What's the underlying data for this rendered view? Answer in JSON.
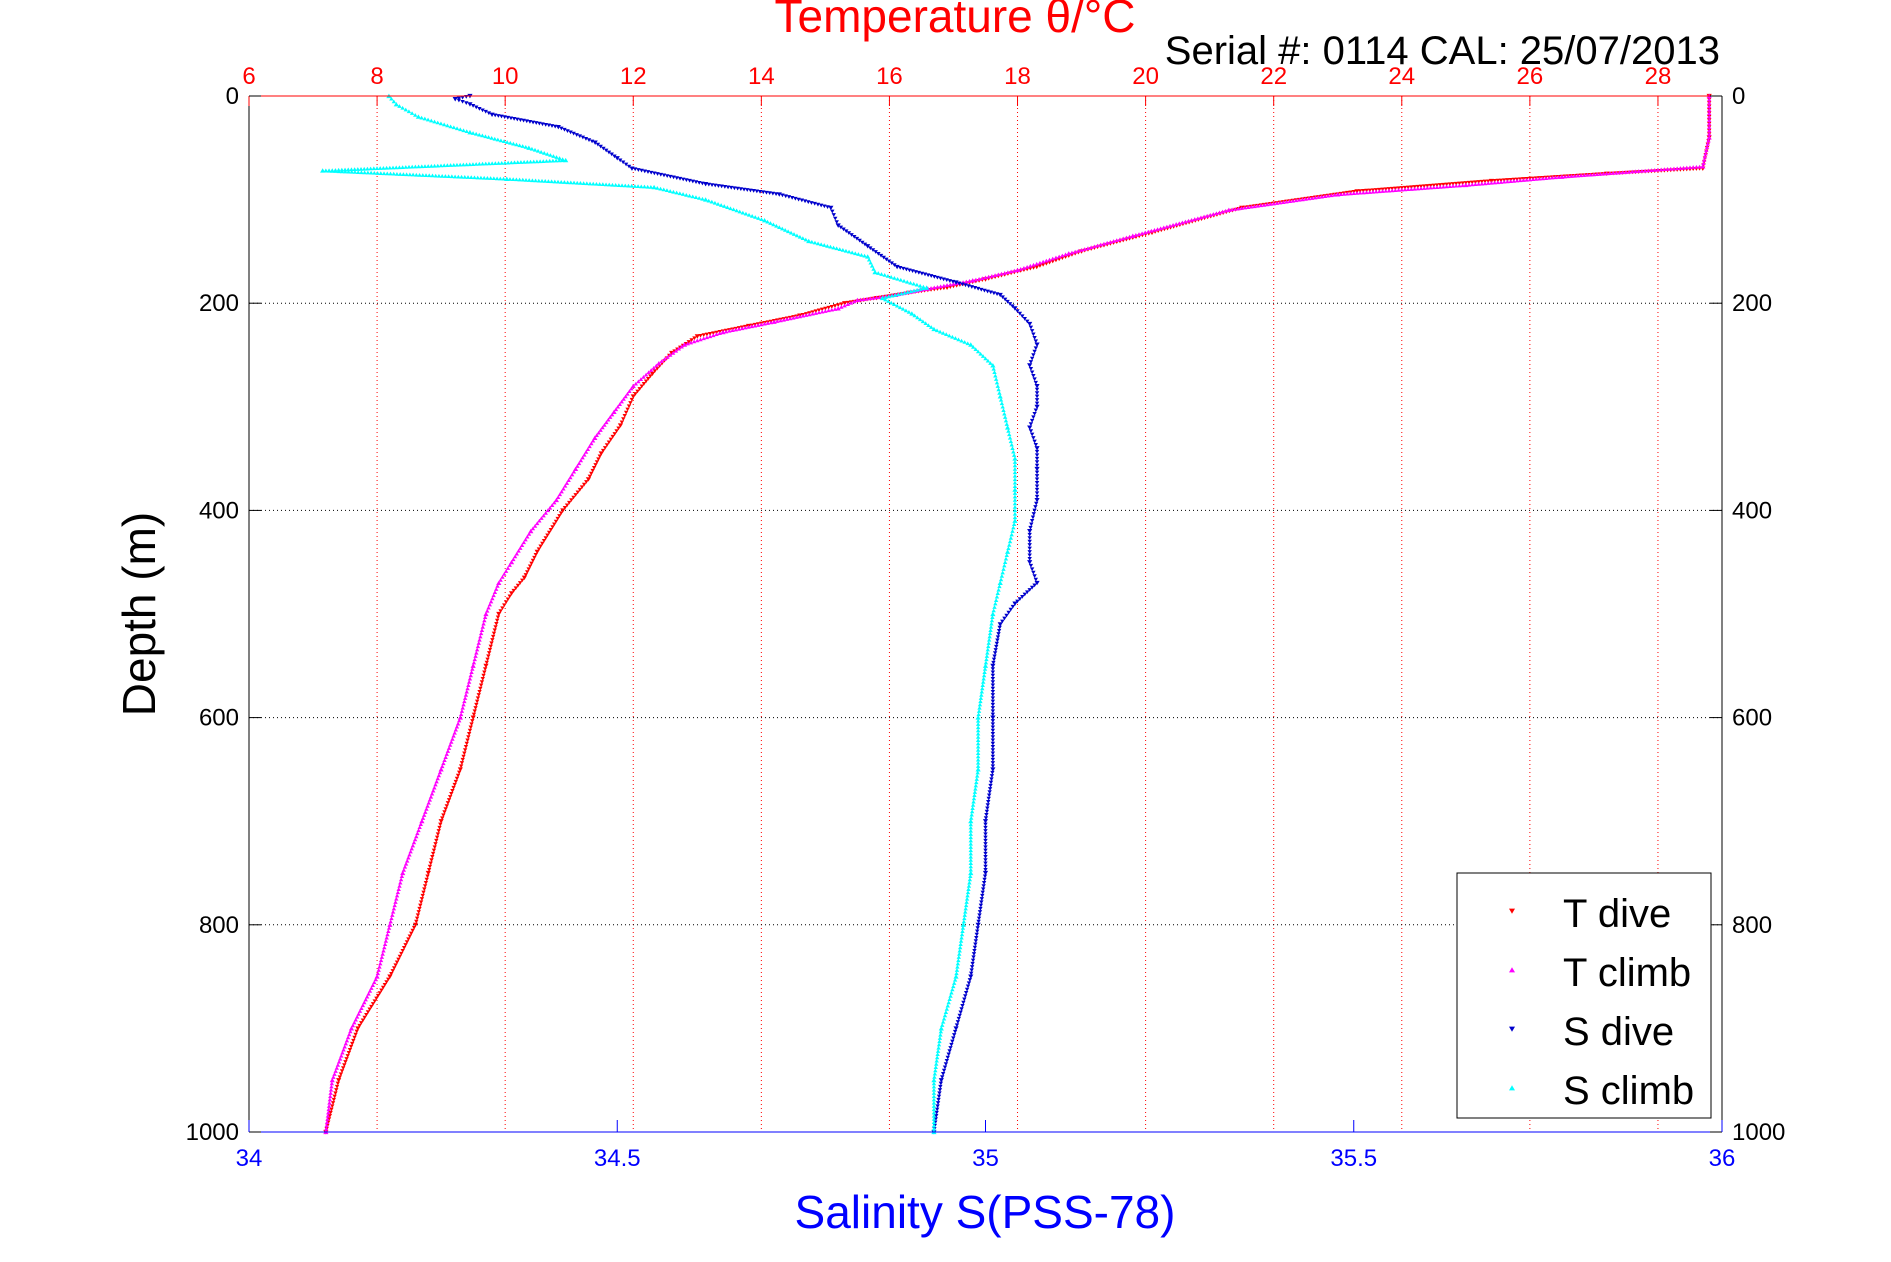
{
  "chart_data": {
    "type": "scatter",
    "title": "Temperature θ/°C",
    "annotation": "Serial #: 0114  CAL: 25/07/2013",
    "ylabel": "Depth (m)",
    "xlabel_bottom": "Salinity S(PSS-78)",
    "xlabel_top": "Temperature θ/°C",
    "ylim": [
      0,
      1000
    ],
    "y_reversed": true,
    "xlim_top": [
      6,
      29
    ],
    "xlim_bottom": [
      34,
      36
    ],
    "yticks": [
      0,
      200,
      400,
      600,
      800,
      1000
    ],
    "xticks_top": [
      6,
      8,
      10,
      12,
      14,
      16,
      18,
      20,
      22,
      24,
      26,
      28
    ],
    "xticks_bottom": [
      "34",
      "34.5",
      "35",
      "35.5",
      "36"
    ],
    "grid": true,
    "legend_position": "bottom-right",
    "colors": {
      "T dive": "#ff0000",
      "T climb": "#ff00ff",
      "S dive": "#0000cc",
      "S climb": "#00ffff"
    },
    "series": [
      {
        "name": "T dive",
        "axis": "top",
        "marker": "triangle-down",
        "points": [
          [
            28.8,
            0
          ],
          [
            28.8,
            40
          ],
          [
            28.7,
            70
          ],
          [
            27.2,
            75
          ],
          [
            25.4,
            82
          ],
          [
            23.3,
            92
          ],
          [
            21.5,
            108
          ],
          [
            20.1,
            132
          ],
          [
            19.0,
            150
          ],
          [
            18.3,
            165
          ],
          [
            17.5,
            177
          ],
          [
            16.9,
            185
          ],
          [
            16.3,
            190
          ],
          [
            15.8,
            195
          ],
          [
            15.3,
            200
          ],
          [
            14.6,
            212
          ],
          [
            13.8,
            222
          ],
          [
            13.0,
            232
          ],
          [
            12.6,
            248
          ],
          [
            12.3,
            268
          ],
          [
            12.0,
            290
          ],
          [
            11.8,
            318
          ],
          [
            11.5,
            345
          ],
          [
            11.3,
            370
          ],
          [
            10.9,
            400
          ],
          [
            10.5,
            440
          ],
          [
            10.3,
            465
          ],
          [
            10.1,
            480
          ],
          [
            9.9,
            500
          ],
          [
            9.7,
            550
          ],
          [
            9.5,
            600
          ],
          [
            9.3,
            650
          ],
          [
            9.0,
            700
          ],
          [
            8.8,
            750
          ],
          [
            8.6,
            800
          ],
          [
            8.2,
            850
          ],
          [
            7.7,
            900
          ],
          [
            7.4,
            950
          ],
          [
            7.2,
            1000
          ]
        ]
      },
      {
        "name": "T climb",
        "axis": "top",
        "marker": "triangle-up",
        "points": [
          [
            28.8,
            0
          ],
          [
            28.8,
            40
          ],
          [
            28.7,
            68
          ],
          [
            26.5,
            78
          ],
          [
            25.0,
            86
          ],
          [
            23.0,
            95
          ],
          [
            21.3,
            110
          ],
          [
            19.8,
            135
          ],
          [
            18.8,
            152
          ],
          [
            18.0,
            168
          ],
          [
            17.3,
            178
          ],
          [
            16.6,
            186
          ],
          [
            16.1,
            192
          ],
          [
            15.5,
            197
          ],
          [
            15.2,
            205
          ],
          [
            14.2,
            218
          ],
          [
            13.4,
            228
          ],
          [
            12.8,
            240
          ],
          [
            12.4,
            258
          ],
          [
            12.0,
            280
          ],
          [
            11.7,
            305
          ],
          [
            11.4,
            330
          ],
          [
            11.1,
            360
          ],
          [
            10.8,
            390
          ],
          [
            10.4,
            420
          ],
          [
            10.1,
            450
          ],
          [
            9.9,
            470
          ],
          [
            9.7,
            500
          ],
          [
            9.5,
            550
          ],
          [
            9.3,
            600
          ],
          [
            9.0,
            650
          ],
          [
            8.7,
            700
          ],
          [
            8.4,
            750
          ],
          [
            8.2,
            800
          ],
          [
            8.0,
            850
          ],
          [
            7.6,
            900
          ],
          [
            7.3,
            950
          ],
          [
            7.2,
            1000
          ]
        ]
      },
      {
        "name": "S dive",
        "axis": "bottom",
        "marker": "triangle-down",
        "points": [
          [
            34.3,
            0
          ],
          [
            34.28,
            3
          ],
          [
            34.3,
            8
          ],
          [
            34.33,
            18
          ],
          [
            34.42,
            30
          ],
          [
            34.47,
            45
          ],
          [
            34.5,
            60
          ],
          [
            34.52,
            70
          ],
          [
            34.62,
            85
          ],
          [
            34.72,
            95
          ],
          [
            34.79,
            108
          ],
          [
            34.8,
            125
          ],
          [
            34.84,
            145
          ],
          [
            34.88,
            165
          ],
          [
            34.96,
            180
          ],
          [
            35.02,
            192
          ],
          [
            35.04,
            205
          ],
          [
            35.06,
            220
          ],
          [
            35.07,
            240
          ],
          [
            35.06,
            260
          ],
          [
            35.07,
            280
          ],
          [
            35.07,
            300
          ],
          [
            35.06,
            320
          ],
          [
            35.07,
            340
          ],
          [
            35.07,
            360
          ],
          [
            35.07,
            390
          ],
          [
            35.06,
            420
          ],
          [
            35.06,
            450
          ],
          [
            35.07,
            470
          ],
          [
            35.04,
            490
          ],
          [
            35.02,
            510
          ],
          [
            35.01,
            550
          ],
          [
            35.01,
            600
          ],
          [
            35.01,
            650
          ],
          [
            35.0,
            700
          ],
          [
            35.0,
            750
          ],
          [
            34.99,
            800
          ],
          [
            34.98,
            850
          ],
          [
            34.96,
            900
          ],
          [
            34.94,
            950
          ],
          [
            34.93,
            1000
          ]
        ]
      },
      {
        "name": "S climb",
        "axis": "bottom",
        "marker": "triangle-up",
        "points": [
          [
            34.19,
            0
          ],
          [
            34.2,
            8
          ],
          [
            34.23,
            20
          ],
          [
            34.3,
            35
          ],
          [
            34.38,
            50
          ],
          [
            34.43,
            62
          ],
          [
            34.1,
            72
          ],
          [
            34.35,
            80
          ],
          [
            34.55,
            88
          ],
          [
            34.62,
            100
          ],
          [
            34.7,
            120
          ],
          [
            34.76,
            140
          ],
          [
            34.84,
            155
          ],
          [
            34.85,
            170
          ],
          [
            34.92,
            185
          ],
          [
            34.86,
            195
          ],
          [
            34.9,
            210
          ],
          [
            34.93,
            225
          ],
          [
            34.98,
            240
          ],
          [
            35.01,
            260
          ],
          [
            35.02,
            290
          ],
          [
            35.03,
            320
          ],
          [
            35.04,
            350
          ],
          [
            35.04,
            380
          ],
          [
            35.04,
            410
          ],
          [
            35.03,
            440
          ],
          [
            35.02,
            470
          ],
          [
            35.01,
            500
          ],
          [
            35.0,
            550
          ],
          [
            34.99,
            600
          ],
          [
            34.99,
            650
          ],
          [
            34.98,
            700
          ],
          [
            34.98,
            750
          ],
          [
            34.97,
            800
          ],
          [
            34.96,
            850
          ],
          [
            34.94,
            900
          ],
          [
            34.93,
            950
          ],
          [
            34.93,
            1000
          ]
        ]
      }
    ]
  }
}
